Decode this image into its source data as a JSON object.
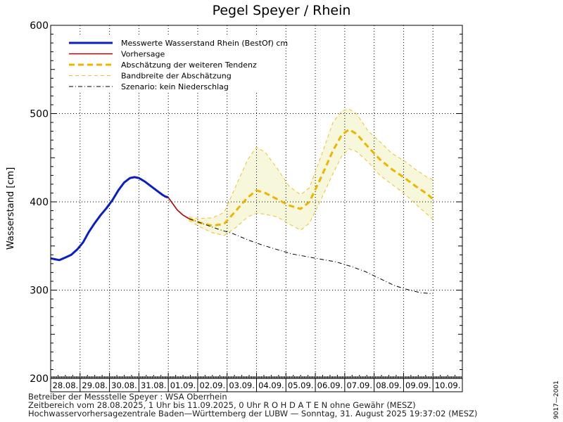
{
  "chart_data": {
    "type": "line",
    "title": "Pegel Speyer / Rhein",
    "ylabel": "Wasserstand [cm]",
    "xlabel": "",
    "ylim": [
      200,
      600
    ],
    "yticks": [
      200,
      300,
      400,
      500,
      600
    ],
    "x_range_days": [
      0,
      14
    ],
    "x_categories": [
      "28.08.",
      "29.08.",
      "30.08.",
      "31.08.",
      "01.09.",
      "02.09.",
      "03.09.",
      "04.09.",
      "05.09.",
      "06.09.",
      "07.09.",
      "08.09.",
      "09.09.",
      "10.09."
    ],
    "grid": true,
    "legend_position": "top-left",
    "series": [
      {
        "name": "Messwerte Wasserstand Rhein (BestOf)   cm",
        "style": "solid-thick",
        "color": "#0a1ec8",
        "points": [
          [
            0.0,
            336
          ],
          [
            0.15,
            335
          ],
          [
            0.3,
            334
          ],
          [
            0.5,
            337
          ],
          [
            0.7,
            340
          ],
          [
            0.9,
            346
          ],
          [
            1.1,
            354
          ],
          [
            1.3,
            366
          ],
          [
            1.5,
            376
          ],
          [
            1.7,
            385
          ],
          [
            1.9,
            393
          ],
          [
            2.1,
            402
          ],
          [
            2.3,
            413
          ],
          [
            2.5,
            422
          ],
          [
            2.7,
            427
          ],
          [
            2.85,
            428
          ],
          [
            3.0,
            427
          ],
          [
            3.2,
            423
          ],
          [
            3.4,
            418
          ],
          [
            3.6,
            413
          ],
          [
            3.8,
            408
          ],
          [
            3.9,
            406
          ],
          [
            4.0,
            405
          ]
        ]
      },
      {
        "name": "Vorhersage",
        "style": "solid",
        "color": "#b40000",
        "points": [
          [
            4.0,
            405
          ],
          [
            4.15,
            398
          ],
          [
            4.3,
            391
          ],
          [
            4.5,
            385
          ],
          [
            4.7,
            381
          ]
        ]
      },
      {
        "name": "Abschätzung der weiteren Tendenz",
        "style": "dashed-thick",
        "color": "#f0b400",
        "points": [
          [
            4.7,
            381
          ],
          [
            5.0,
            377
          ],
          [
            5.5,
            373
          ],
          [
            5.9,
            375
          ],
          [
            6.3,
            390
          ],
          [
            6.7,
            405
          ],
          [
            7.0,
            413
          ],
          [
            7.3,
            410
          ],
          [
            7.7,
            403
          ],
          [
            8.1,
            396
          ],
          [
            8.5,
            392
          ],
          [
            8.8,
            400
          ],
          [
            9.2,
            428
          ],
          [
            9.6,
            458
          ],
          [
            9.9,
            476
          ],
          [
            10.15,
            482
          ],
          [
            10.4,
            477
          ],
          [
            10.8,
            462
          ],
          [
            11.2,
            448
          ],
          [
            11.6,
            437
          ],
          [
            12.0,
            428
          ],
          [
            12.4,
            418
          ],
          [
            12.8,
            409
          ],
          [
            13.0,
            403
          ]
        ]
      },
      {
        "name": "Bandbreite der Abschätzung",
        "style": "dashed-band",
        "color": "#f0c030",
        "upper": [
          [
            4.7,
            383
          ],
          [
            5.0,
            381
          ],
          [
            5.5,
            382
          ],
          [
            5.9,
            388
          ],
          [
            6.3,
            418
          ],
          [
            6.7,
            448
          ],
          [
            7.0,
            462
          ],
          [
            7.3,
            456
          ],
          [
            7.7,
            438
          ],
          [
            8.1,
            418
          ],
          [
            8.5,
            408
          ],
          [
            8.8,
            416
          ],
          [
            9.2,
            452
          ],
          [
            9.6,
            490
          ],
          [
            9.9,
            503
          ],
          [
            10.15,
            505
          ],
          [
            10.4,
            500
          ],
          [
            10.8,
            480
          ],
          [
            11.2,
            468
          ],
          [
            11.6,
            455
          ],
          [
            12.0,
            447
          ],
          [
            12.4,
            437
          ],
          [
            12.8,
            428
          ],
          [
            13.0,
            425
          ]
        ],
        "lower": [
          [
            4.7,
            379
          ],
          [
            5.0,
            373
          ],
          [
            5.5,
            365
          ],
          [
            5.9,
            362
          ],
          [
            6.3,
            371
          ],
          [
            6.7,
            383
          ],
          [
            7.0,
            387
          ],
          [
            7.3,
            386
          ],
          [
            7.7,
            383
          ],
          [
            8.1,
            375
          ],
          [
            8.5,
            368
          ],
          [
            8.8,
            376
          ],
          [
            9.2,
            403
          ],
          [
            9.6,
            432
          ],
          [
            9.9,
            452
          ],
          [
            10.15,
            460
          ],
          [
            10.4,
            457
          ],
          [
            10.8,
            445
          ],
          [
            11.2,
            430
          ],
          [
            11.6,
            420
          ],
          [
            12.0,
            410
          ],
          [
            12.4,
            398
          ],
          [
            12.8,
            386
          ],
          [
            13.0,
            380
          ]
        ]
      },
      {
        "name": "Szenario: kein Niederschlag",
        "style": "dash-dot",
        "color": "#000000",
        "points": [
          [
            4.7,
            381
          ],
          [
            5.2,
            375
          ],
          [
            5.7,
            369
          ],
          [
            6.2,
            364
          ],
          [
            6.7,
            357
          ],
          [
            7.2,
            351
          ],
          [
            7.7,
            346
          ],
          [
            8.2,
            341
          ],
          [
            8.7,
            338
          ],
          [
            9.2,
            335
          ],
          [
            9.7,
            332
          ],
          [
            10.2,
            327
          ],
          [
            10.7,
            321
          ],
          [
            11.2,
            313
          ],
          [
            11.7,
            305
          ],
          [
            12.2,
            300
          ],
          [
            12.6,
            297
          ],
          [
            13.0,
            296
          ]
        ]
      }
    ]
  },
  "footer": {
    "line1": "Betreiber der Messstelle Speyer : WSA Oberrhein",
    "line2": "Zeitbereich vom 28.08.2025, 1 Uhr bis 11.09.2025, 0 Uhr   R O H D A T E N ohne Gewähr (MESZ)",
    "line3": "Hochwasservorhersagezentrale Baden—Württemberg der LUBW — Sonntag, 31. August 2025 19:37:02 (MESZ)"
  },
  "side_id": "9017—2001"
}
